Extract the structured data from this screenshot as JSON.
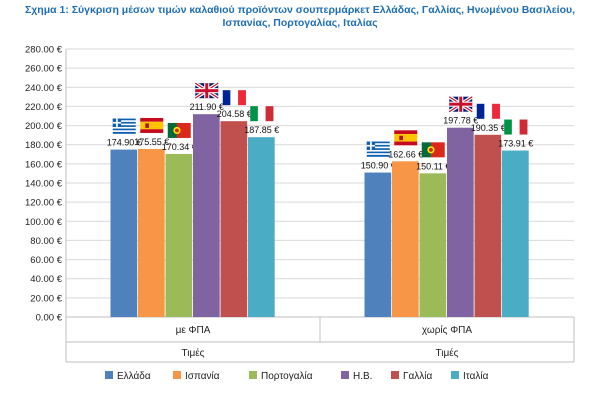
{
  "chart_data": {
    "type": "bar",
    "title_line1": "Σχημα 1: Σύγκριση μέσων τιμών καλαθιού προϊόντων σουπερμάρκετ Ελλάδας, Γαλλίας, Ηνωμένου Βασιλείου,",
    "title_line2": "Ισπανίας, Πορτογαλίας, Ιταλίας",
    "categories": [
      "με ΦΠΑ",
      "χωρίς ΦΠΑ"
    ],
    "xlabel": "Τιμές",
    "ylim": [
      0,
      280
    ],
    "y_step": 20,
    "y_tick_labels": [
      "0.00 €",
      "20.00 €",
      "40.00 €",
      "60.00 €",
      "80.00 €",
      "100.00 €",
      "120.00 €",
      "140.00 €",
      "160.00 €",
      "180.00 €",
      "200.00 €",
      "220.00 €",
      "240.00 €",
      "260.00 €",
      "280.00 €"
    ],
    "grid": true,
    "legend_position": "bottom",
    "series": [
      {
        "name": "Ελλάδα",
        "color": "#4f81bd",
        "flag": "greece-flag-icon",
        "values": [
          174.9,
          150.9
        ],
        "labels": [
          "174.90 €",
          "150.90 €"
        ]
      },
      {
        "name": "Ισπανία",
        "color": "#f79646",
        "flag": "spain-flag-icon",
        "values": [
          175.55,
          162.66
        ],
        "labels": [
          "175.55 €",
          "162.66 €"
        ]
      },
      {
        "name": "Πορτογαλία",
        "color": "#9bbb59",
        "flag": "portugal-flag-icon",
        "values": [
          170.34,
          150.11
        ],
        "labels": [
          "170.34 €",
          "150.11 €"
        ]
      },
      {
        "name": "Η.Β.",
        "color": "#8064a2",
        "flag": "uk-flag-icon",
        "values": [
          211.9,
          197.78
        ],
        "labels": [
          "211.90 €",
          "197.78 €"
        ]
      },
      {
        "name": "Γαλλία",
        "color": "#c0504d",
        "flag": "france-flag-icon",
        "values": [
          204.58,
          190.35
        ],
        "labels": [
          "204.58 €",
          "190.35 €"
        ]
      },
      {
        "name": "Ιταλία",
        "color": "#4bacc6",
        "flag": "italy-flag-icon",
        "values": [
          187.85,
          173.91
        ],
        "labels": [
          "187.85 €",
          "173.91 €"
        ]
      }
    ]
  }
}
